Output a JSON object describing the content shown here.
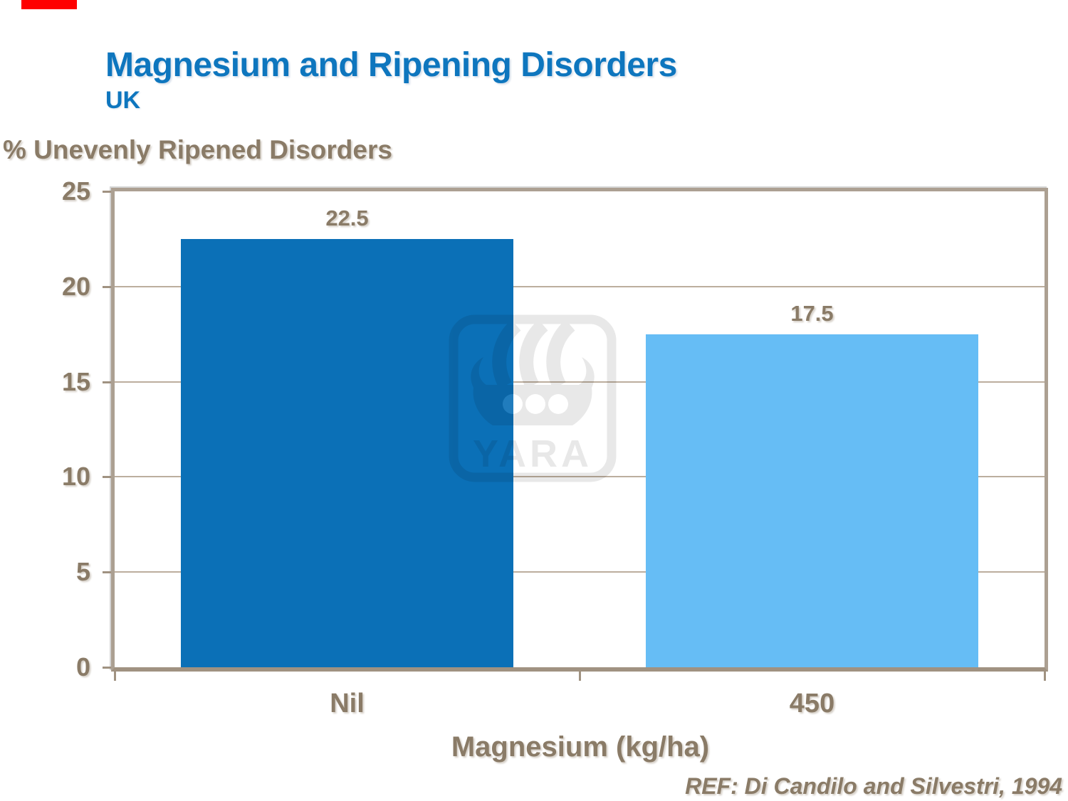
{
  "page": {
    "title": "Magnesium and Ripening Disorders",
    "subtitle": "UK",
    "reference": "REF: Di Candilo and Silvestri, 1994"
  },
  "watermark": {
    "brand": "YARA"
  },
  "colors": {
    "title_blue": "#0E76BE",
    "chart_text": "#8A7B67",
    "grid_tan": "#BCAE9E",
    "frame_tan": "#ACA092",
    "axis_tan": "#A09281",
    "red_mark": "#FE0000"
  },
  "chart_data": {
    "type": "bar",
    "title": "Magnesium and Ripening Disorders",
    "subtitle": "UK",
    "categories": [
      "Nil",
      "450"
    ],
    "values": [
      22.5,
      17.5
    ],
    "bar_labels": [
      "22.5",
      "17.5"
    ],
    "bar_colors": [
      "#0B70B7",
      "#66BDF5"
    ],
    "xlabel": "Magnesium (kg/ha)",
    "ylabel": "% Unevenly Ripened Disorders",
    "ylim": [
      0,
      25
    ],
    "yticks": [
      0,
      5,
      10,
      15,
      20,
      25
    ],
    "grid": true,
    "legend": "none",
    "reference": "REF: Di Candilo and Silvestri, 1994"
  }
}
